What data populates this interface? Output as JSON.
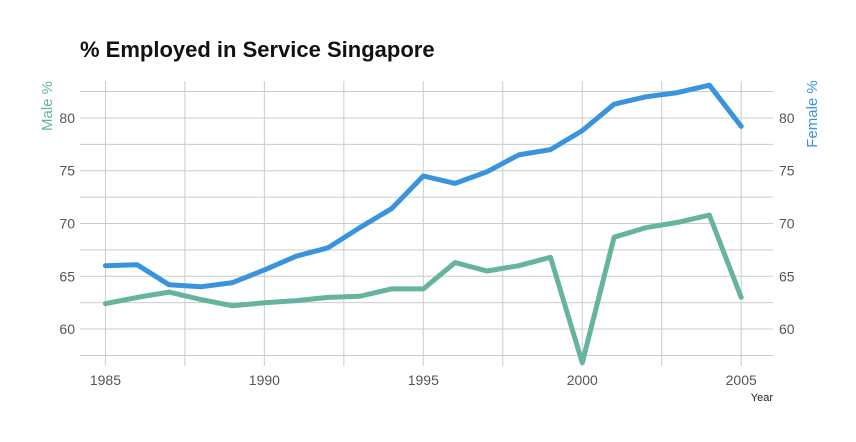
{
  "chart_data": {
    "type": "line",
    "title": "% Employed in Service Singapore",
    "xlabel": "Year",
    "ylabel_left": "Male %",
    "ylabel_right": "Female %",
    "xlim": [
      1984.2,
      2006.0
    ],
    "ylim": [
      56.5,
      83.5
    ],
    "xticks": [
      1985,
      1990,
      1995,
      2000,
      2005
    ],
    "yticks": [
      60,
      65,
      70,
      75,
      80
    ],
    "grid": true,
    "colors": {
      "male": "#66b3a0",
      "female": "#3a93dd",
      "left_label": "#66b3a0",
      "right_label": "#3a93dd"
    },
    "x": [
      1985,
      1986,
      1987,
      1988,
      1989,
      1990,
      1991,
      1992,
      1993,
      1994,
      1995,
      1996,
      1997,
      1998,
      1999,
      2000,
      2001,
      2002,
      2003,
      2004,
      2005
    ],
    "series": [
      {
        "key": "male",
        "values": [
          62.4,
          63.0,
          63.5,
          62.8,
          62.2,
          62.5,
          62.7,
          63.0,
          63.1,
          63.8,
          63.8,
          66.3,
          65.5,
          66.0,
          66.8,
          56.8,
          68.7,
          69.6,
          70.1,
          70.8,
          63.0
        ]
      },
      {
        "key": "female",
        "values": [
          66.0,
          66.1,
          64.2,
          64.0,
          64.4,
          65.6,
          66.9,
          67.7,
          69.6,
          71.4,
          74.5,
          73.8,
          74.9,
          76.5,
          77.0,
          78.8,
          81.3,
          82.0,
          82.4,
          83.1,
          79.2
        ]
      }
    ]
  }
}
